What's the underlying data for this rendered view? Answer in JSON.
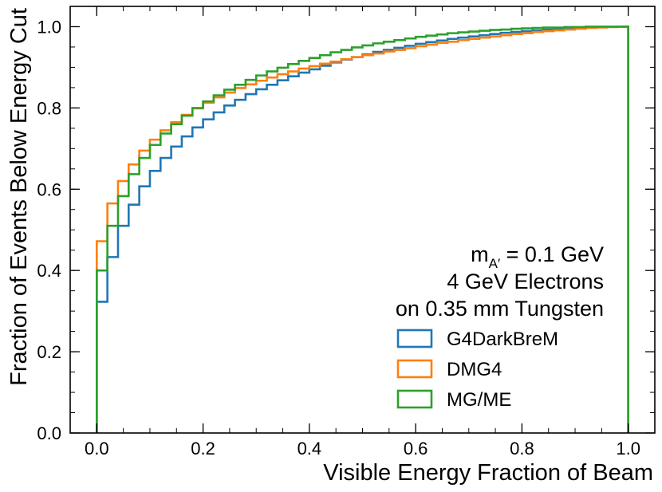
{
  "chart_data": {
    "type": "line",
    "drawstyle": "step",
    "title": "",
    "xlabel": "Visible Energy Fraction of Beam",
    "ylabel": "Fraction of Events Below Energy Cut",
    "xlim": [
      -0.05,
      1.05
    ],
    "ylim": [
      0.0,
      1.05
    ],
    "xticks": [
      0.0,
      0.2,
      0.4,
      0.6,
      0.8,
      1.0
    ],
    "xtick_labels": [
      "0.0",
      "0.2",
      "0.4",
      "0.6",
      "0.8",
      "1.0"
    ],
    "yticks": [
      0.0,
      0.2,
      0.4,
      0.6,
      0.8,
      1.0
    ],
    "ytick_labels": [
      "0.0",
      "0.2",
      "0.4",
      "0.6",
      "0.8",
      "1.0"
    ],
    "grid": false,
    "legend_position": "lower-right",
    "annotation": {
      "mass_label_main": "m",
      "mass_label_sub": "A′",
      "mass_label_value": " = 0.1 GeV",
      "line2": "4 GeV Electrons",
      "line3": "on 0.35 mm Tungsten"
    },
    "bin_edges": [
      0.0,
      0.02,
      0.04,
      0.06,
      0.08,
      0.1,
      0.12,
      0.14,
      0.16,
      0.18,
      0.2,
      0.22,
      0.24,
      0.26,
      0.28,
      0.3,
      0.32,
      0.34,
      0.36,
      0.38,
      0.4,
      0.42,
      0.44,
      0.46,
      0.48,
      0.5,
      0.52,
      0.54,
      0.56,
      0.58,
      0.6,
      0.62,
      0.64,
      0.66,
      0.68,
      0.7,
      0.72,
      0.74,
      0.76,
      0.78,
      0.8,
      0.82,
      0.84,
      0.86,
      0.88,
      0.9,
      0.92,
      0.94,
      0.96,
      0.98,
      1.0
    ],
    "series": [
      {
        "name": "G4DarkBreM",
        "color": "#1f77b4",
        "values": [
          0.323,
          0.433,
          0.51,
          0.562,
          0.607,
          0.645,
          0.677,
          0.705,
          0.73,
          0.752,
          0.772,
          0.789,
          0.806,
          0.82,
          0.834,
          0.846,
          0.857,
          0.868,
          0.878,
          0.887,
          0.895,
          0.904,
          0.912,
          0.919,
          0.925,
          0.932,
          0.938,
          0.943,
          0.948,
          0.953,
          0.958,
          0.962,
          0.966,
          0.97,
          0.973,
          0.976,
          0.979,
          0.982,
          0.985,
          0.987,
          0.989,
          0.991,
          0.993,
          0.995,
          0.996,
          0.997,
          0.998,
          0.999,
          0.9995,
          1.0
        ]
      },
      {
        "name": "DMG4",
        "color": "#ff7f0e",
        "values": [
          0.472,
          0.565,
          0.62,
          0.661,
          0.695,
          0.722,
          0.745,
          0.765,
          0.783,
          0.799,
          0.813,
          0.826,
          0.838,
          0.849,
          0.858,
          0.867,
          0.875,
          0.883,
          0.89,
          0.897,
          0.903,
          0.909,
          0.914,
          0.92,
          0.925,
          0.93,
          0.934,
          0.939,
          0.943,
          0.947,
          0.952,
          0.956,
          0.96,
          0.963,
          0.967,
          0.97,
          0.973,
          0.976,
          0.979,
          0.982,
          0.984,
          0.987,
          0.989,
          0.991,
          0.993,
          0.995,
          0.997,
          0.998,
          0.999,
          1.0
        ]
      },
      {
        "name": "MG/ME",
        "color": "#2ca02c",
        "values": [
          0.4,
          0.51,
          0.583,
          0.637,
          0.677,
          0.709,
          0.737,
          0.76,
          0.781,
          0.8,
          0.816,
          0.831,
          0.845,
          0.857,
          0.869,
          0.88,
          0.89,
          0.899,
          0.908,
          0.916,
          0.923,
          0.93,
          0.937,
          0.943,
          0.949,
          0.954,
          0.959,
          0.963,
          0.967,
          0.971,
          0.975,
          0.978,
          0.981,
          0.984,
          0.986,
          0.988,
          0.99,
          0.992,
          0.993,
          0.995,
          0.996,
          0.997,
          0.998,
          0.998,
          0.999,
          0.999,
          1.0,
          1.0,
          1.0,
          1.0
        ]
      }
    ]
  }
}
